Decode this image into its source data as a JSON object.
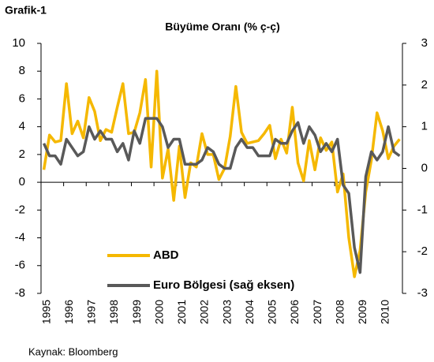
{
  "chart_data": {
    "type": "line",
    "label": "Grafik-1",
    "title": "Büyüme Oranı (% ç-ç)",
    "source": "Kaynak: Bloomberg",
    "categories": [
      "1995",
      null,
      null,
      null,
      "1996",
      null,
      null,
      null,
      "1997",
      null,
      null,
      null,
      "1998",
      null,
      null,
      null,
      "1999",
      null,
      null,
      null,
      "2000",
      null,
      null,
      null,
      "2001",
      null,
      null,
      null,
      "2002",
      null,
      null,
      null,
      "2003",
      null,
      null,
      null,
      "2004",
      null,
      null,
      null,
      "2005",
      null,
      null,
      null,
      "2006",
      null,
      null,
      null,
      "2007",
      null,
      null,
      null,
      "2008",
      null,
      null,
      null,
      "2009",
      null,
      null,
      null,
      "2010",
      null,
      null,
      null
    ],
    "series": [
      {
        "name": "ABD",
        "color": "#f5b800",
        "values": [
          0.9,
          3.4,
          2.9,
          3.0,
          7.1,
          3.5,
          4.4,
          3.2,
          6.1,
          5.1,
          3.0,
          3.8,
          3.6,
          5.4,
          7.1,
          3.5,
          3.6,
          5.0,
          7.4,
          1.1,
          8.0,
          0.3,
          2.4,
          -1.3,
          2.6,
          -1.1,
          1.4,
          1.1,
          3.5,
          2.0,
          2.0,
          0.2,
          1.0,
          3.3,
          6.9,
          3.6,
          2.8,
          2.9,
          3.0,
          3.5,
          4.1,
          1.7,
          3.1,
          2.1,
          5.4,
          1.4,
          0.1,
          3.0,
          0.9,
          3.2,
          2.3,
          2.9,
          -0.7,
          0.6,
          -4.0,
          -6.8,
          -4.9,
          -0.7,
          1.6,
          5.0,
          3.7,
          1.7,
          2.6,
          3.1
        ]
      },
      {
        "name": "Euro Bölgesi (sağ eksen)",
        "color": "#595959",
        "axis": "y2",
        "values": [
          0.6,
          0.3,
          0.3,
          0.1,
          0.7,
          0.5,
          0.3,
          0.4,
          1.0,
          0.7,
          0.9,
          0.7,
          0.7,
          0.4,
          0.6,
          0.2,
          0.9,
          0.6,
          1.2,
          1.2,
          1.2,
          1.0,
          0.5,
          0.7,
          0.7,
          0.1,
          0.1,
          0.1,
          0.2,
          0.5,
          0.4,
          0.1,
          0.0,
          0.0,
          0.5,
          0.7,
          0.5,
          0.5,
          0.3,
          0.3,
          0.3,
          0.7,
          0.6,
          0.6,
          0.9,
          1.1,
          0.6,
          1.0,
          0.8,
          0.4,
          0.6,
          0.4,
          0.7,
          -0.4,
          -0.6,
          -1.9,
          -2.5,
          -0.2,
          0.4,
          0.2,
          0.4,
          1.0,
          0.4,
          0.3
        ]
      }
    ],
    "ylim": [
      -8,
      10
    ],
    "yticks": [
      -8,
      -6,
      -4,
      -2,
      0,
      2,
      4,
      6,
      8,
      10
    ],
    "y2lim": [
      -3,
      3
    ],
    "y2ticks": [
      -3,
      -2,
      -1,
      0,
      1,
      2,
      3
    ]
  }
}
